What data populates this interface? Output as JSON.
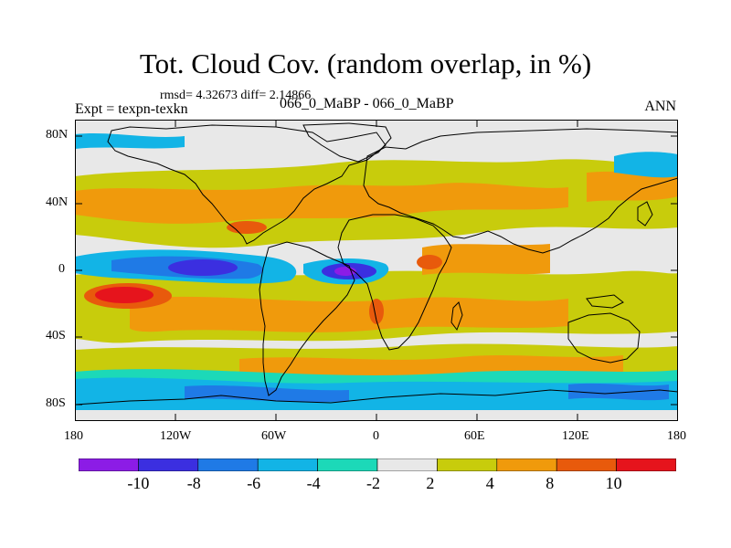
{
  "title": "Tot. Cloud Cov. (random overlap, in %)",
  "stats": "rmsd= 4.32673  diff= 2.14866",
  "expt": "Expt = texpn-texkn",
  "case": "066_0_MaBP - 066_0_MaBP",
  "season": "ANN",
  "lon_ticks": [
    "180",
    "120W",
    "60W",
    "0",
    "60E",
    "120E",
    "180"
  ],
  "lat_ticks": [
    "80N",
    "40N",
    "0",
    "40S",
    "80S"
  ],
  "colorbar": {
    "labels": [
      "-10",
      "-8",
      "-6",
      "-4",
      "-2",
      "2",
      "4",
      "8",
      "10"
    ],
    "colors": [
      "#8c1ce6",
      "#3b2fe0",
      "#1f7ae6",
      "#12b4e6",
      "#1cd9b8",
      "#e8e8e8",
      "#c8cc0c",
      "#f09a0c",
      "#e85a0c",
      "#e6141c"
    ]
  }
}
